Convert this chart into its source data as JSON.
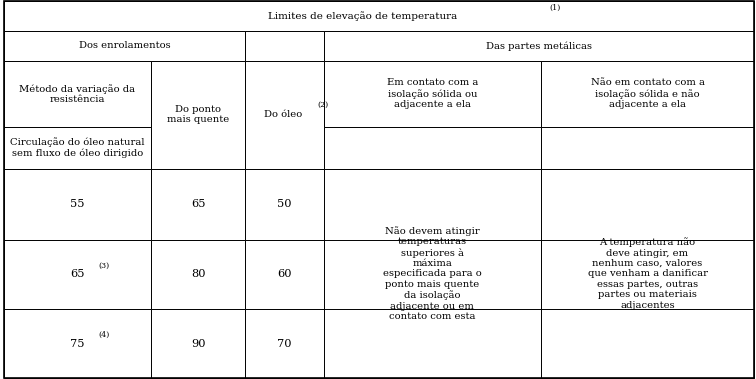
{
  "bg_color": "#ffffff",
  "border_color": "#000000",
  "font_size": 7.2,
  "title_text": "Limites de elevação de temperatura ",
  "title_sup": "(1)",
  "col_labels_row1_left": "Dos enrolamentos",
  "col_labels_row1_right": "Das partes metálicas",
  "header2_col0": "Método da variação da\nresistência",
  "header2_col1": "Do ponto\nmais quente",
  "header2_col2_main": "Do óleo ",
  "header2_col2_sup": "(2)",
  "header2_col3": "Em contato com a\nisolação sólida ou\nadjacente a ela",
  "header2_col4": "Não em contato com a\nisolação sólida e não\nadjacente a ela",
  "header3_col0": "Circulação do óleo natural\nsem fluxo de óleo dirigido",
  "data_col0": [
    "55",
    "65",
    "75"
  ],
  "data_col0_sup": [
    "",
    "(3)",
    "(4)"
  ],
  "data_col1": [
    "65",
    "80",
    "90"
  ],
  "data_col2": [
    "50",
    "60",
    "70"
  ],
  "merged_col3": "Não devem atingir\ntemperaturas\nsuperiores à\nmáxima\nespecificada para o\nponto mais quente\nda isolação\nadjacente ou em\ncontato com esta",
  "merged_col4": "A temperatura não\ndeve atingir, em\nnenhum caso, valores\nque venham a danificar\nessas partes, outras\npartes ou materiais\nadjacentes"
}
